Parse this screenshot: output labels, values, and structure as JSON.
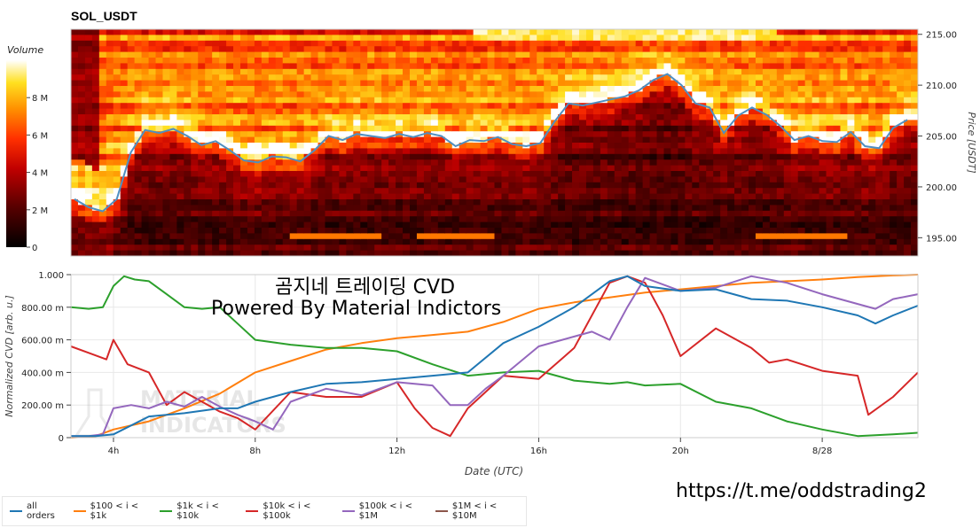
{
  "watermark": {
    "line1": "MATERIAL",
    "line2": "INDICATORS"
  },
  "overlay_text": {
    "title_line1": "곰지네 트레이딩 CVD",
    "title_line2": "Powered By Material Indictors",
    "link": "https://t.me/oddstrading2"
  },
  "legend": {
    "items": [
      {
        "label": "all orders",
        "color": "#1f77b4"
      },
      {
        "label": "$100 < i < $1k",
        "color": "#ff7f0e"
      },
      {
        "label": "$1k < i < $10k",
        "color": "#2ca02c"
      },
      {
        "label": "$10k < i < $100k",
        "color": "#d62728"
      },
      {
        "label": "$100k < i < $1M",
        "color": "#9467bd"
      },
      {
        "label": "$1M < i < $10M",
        "color": "#8c564b"
      }
    ]
  },
  "chart_data": [
    {
      "type": "heatmap",
      "title": "SOL_USDT",
      "colorbar": {
        "label": "Volume",
        "ticks": [
          "0",
          "2 M",
          "4 M",
          "6 M",
          "8 M"
        ],
        "tick_values": [
          0,
          2,
          4,
          6,
          8
        ],
        "range": [
          0,
          10
        ]
      },
      "ylabel": "Price [USDT]",
      "y_ticks": [
        "195.00",
        "200.00",
        "205.00",
        "210.00",
        "215.00"
      ],
      "y_tick_values": [
        195,
        200,
        205,
        210,
        215
      ],
      "ylim": [
        193.2,
        215.5
      ],
      "price_line": {
        "color": "#4f8fc0",
        "x": [
          0,
          2,
          4,
          6,
          8,
          10,
          12,
          14,
          16,
          18,
          20,
          22,
          24,
          26,
          28,
          30,
          32,
          34,
          36,
          38,
          40,
          42,
          44,
          46,
          48,
          50,
          52,
          54,
          56,
          58,
          60,
          62,
          64,
          66,
          68,
          70,
          72,
          74,
          76,
          78,
          80,
          82,
          84,
          86,
          88,
          90,
          92,
          94,
          96,
          98,
          100,
          102,
          104,
          106,
          108,
          110,
          112,
          114,
          116,
          118
        ],
        "y": [
          198.8,
          198.0,
          197.6,
          198.8,
          203.4,
          205.6,
          205.3,
          205.7,
          205.0,
          204.1,
          204.5,
          203.6,
          202.6,
          202.4,
          203.0,
          202.9,
          202.5,
          203.6,
          205.0,
          204.6,
          205.2,
          205.0,
          204.8,
          205.2,
          204.9,
          205.3,
          205.0,
          204.0,
          204.6,
          204.5,
          204.9,
          204.2,
          204.0,
          204.3,
          206.4,
          208.2,
          208.0,
          208.3,
          208.6,
          208.9,
          209.5,
          210.5,
          211.1,
          210.0,
          208.2,
          207.8,
          205.3,
          207.0,
          207.8,
          207.1,
          206.0,
          204.6,
          205.0,
          204.5,
          204.4,
          205.4,
          204.0,
          203.8,
          205.8,
          206.6
        ]
      }
    },
    {
      "type": "line",
      "xlabel": "Date (UTC)",
      "ylabel": "Normalized CVD [arb. u.]",
      "x_ticks": [
        "4h",
        "8h",
        "12h",
        "16h",
        "20h",
        "8/28"
      ],
      "x_tick_values": [
        4,
        8,
        12,
        16,
        20,
        24
      ],
      "xlim": [
        2.8,
        26.7
      ],
      "y_ticks": [
        "0",
        "200.00 m",
        "400.00 m",
        "600.00 m",
        "800.00 m",
        "1.000"
      ],
      "y_tick_values": [
        0,
        0.2,
        0.4,
        0.6,
        0.8,
        1.0
      ],
      "ylim": [
        0,
        1.0
      ],
      "grid": true,
      "series": [
        {
          "name": "$100 < i < $1k",
          "color": "#ff7f0e",
          "x": [
            2.8,
            3.5,
            4,
            5,
            6,
            7,
            8,
            9,
            10,
            11,
            12,
            13,
            14,
            15,
            16,
            17,
            18,
            19,
            20,
            21,
            22,
            23,
            24,
            25,
            26,
            26.7
          ],
          "y": [
            0.0,
            0.01,
            0.05,
            0.1,
            0.18,
            0.27,
            0.4,
            0.47,
            0.54,
            0.58,
            0.61,
            0.63,
            0.65,
            0.71,
            0.79,
            0.83,
            0.86,
            0.89,
            0.91,
            0.93,
            0.95,
            0.96,
            0.97,
            0.985,
            0.995,
            1.0
          ]
        },
        {
          "name": "$1k < i < $10k",
          "color": "#2ca02c",
          "x": [
            2.8,
            3.3,
            3.7,
            4,
            4.3,
            4.6,
            5,
            5.5,
            6,
            6.5,
            7,
            7.5,
            8,
            9,
            10,
            11,
            12,
            13,
            14,
            15,
            16,
            17,
            18,
            18.5,
            19,
            20,
            21,
            22,
            23,
            24,
            25,
            26,
            26.7
          ],
          "y": [
            0.8,
            0.79,
            0.8,
            0.93,
            0.99,
            0.97,
            0.96,
            0.88,
            0.8,
            0.79,
            0.8,
            0.7,
            0.6,
            0.57,
            0.55,
            0.55,
            0.53,
            0.45,
            0.38,
            0.4,
            0.41,
            0.35,
            0.33,
            0.34,
            0.32,
            0.33,
            0.22,
            0.18,
            0.1,
            0.05,
            0.01,
            0.02,
            0.03
          ]
        },
        {
          "name": "$10k < i < $100k",
          "color": "#d62728",
          "x": [
            2.8,
            3.3,
            3.8,
            4,
            4.4,
            5,
            5.5,
            6,
            6.5,
            7,
            7.5,
            8,
            9,
            10,
            11,
            12,
            12.5,
            13,
            13.5,
            14,
            15,
            16,
            17,
            18,
            18.5,
            19,
            19.5,
            20,
            21,
            22,
            22.5,
            23,
            24,
            25,
            25.3,
            26,
            26.7
          ],
          "y": [
            0.56,
            0.52,
            0.48,
            0.6,
            0.45,
            0.4,
            0.2,
            0.28,
            0.22,
            0.16,
            0.12,
            0.05,
            0.28,
            0.25,
            0.25,
            0.34,
            0.18,
            0.06,
            0.01,
            0.18,
            0.38,
            0.36,
            0.55,
            0.95,
            0.99,
            0.95,
            0.75,
            0.5,
            0.67,
            0.55,
            0.46,
            0.48,
            0.41,
            0.38,
            0.14,
            0.25,
            0.4
          ]
        },
        {
          "name": "$100k < i < $1M",
          "color": "#9467bd",
          "x": [
            2.8,
            3.3,
            3.7,
            4,
            4.5,
            5,
            5.5,
            6,
            6.5,
            7,
            7.5,
            8,
            8.5,
            9,
            10,
            11,
            12,
            13,
            13.5,
            14,
            14.5,
            15,
            16,
            17,
            17.5,
            18,
            18.5,
            19,
            20,
            21,
            22,
            23,
            24,
            25,
            25.5,
            26,
            26.7
          ],
          "y": [
            0.01,
            0.01,
            0.02,
            0.18,
            0.2,
            0.18,
            0.22,
            0.19,
            0.25,
            0.19,
            0.14,
            0.1,
            0.05,
            0.22,
            0.3,
            0.26,
            0.34,
            0.32,
            0.2,
            0.2,
            0.3,
            0.38,
            0.56,
            0.62,
            0.65,
            0.6,
            0.8,
            0.98,
            0.9,
            0.92,
            0.99,
            0.95,
            0.88,
            0.82,
            0.79,
            0.85,
            0.88
          ]
        },
        {
          "name": "all orders",
          "color": "#1f77b4",
          "x": [
            2.8,
            3.5,
            4,
            5,
            6,
            7,
            7.5,
            8,
            9,
            10,
            11,
            12,
            13,
            14,
            15,
            16,
            17,
            18,
            18.5,
            19,
            20,
            21,
            22,
            23,
            24,
            25,
            25.5,
            26,
            26.7
          ],
          "y": [
            0.01,
            0.01,
            0.02,
            0.13,
            0.15,
            0.18,
            0.18,
            0.22,
            0.28,
            0.33,
            0.34,
            0.36,
            0.38,
            0.4,
            0.58,
            0.68,
            0.8,
            0.96,
            0.99,
            0.93,
            0.9,
            0.91,
            0.85,
            0.84,
            0.8,
            0.75,
            0.7,
            0.75,
            0.81
          ]
        },
        {
          "name": "$1M < i < $10M",
          "color": "#8c564b",
          "x": [],
          "y": []
        }
      ]
    }
  ]
}
